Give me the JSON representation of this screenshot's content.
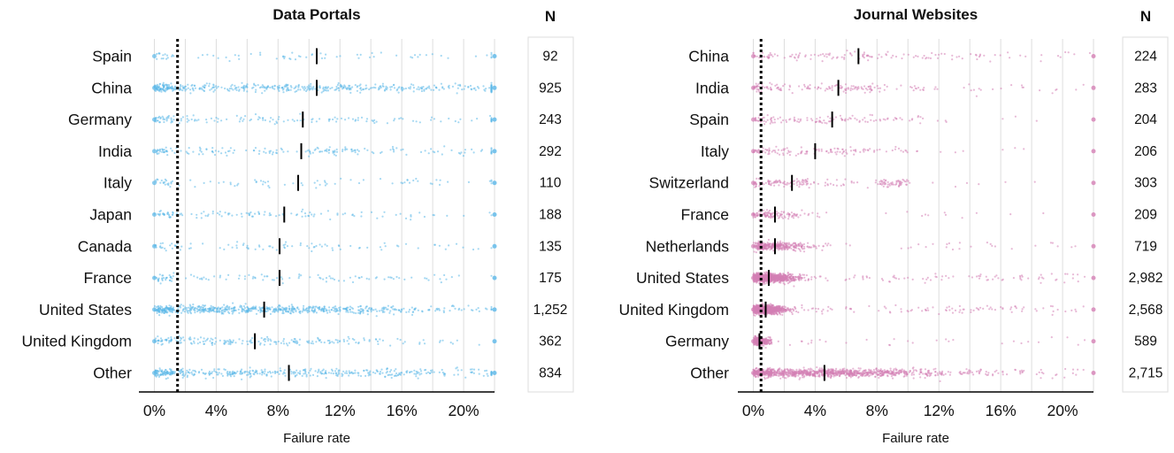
{
  "chart_data": [
    {
      "type": "scatter",
      "title": "Data Portals",
      "xlabel": "Failure rate",
      "ylabel": "",
      "xlim": [
        -0.01,
        0.22
      ],
      "xticks": [
        0,
        0.04,
        0.08,
        0.12,
        0.16,
        0.2
      ],
      "xtick_labels": [
        "0%",
        "4%",
        "8%",
        "12%",
        "16%",
        "20%"
      ],
      "reference_line": 0.015,
      "color": "#5bb8e8",
      "n_header": "N",
      "categories": [
        "Spain",
        "China",
        "Germany",
        "India",
        "Italy",
        "Japan",
        "Canada",
        "France",
        "United States",
        "United Kingdom",
        "Other"
      ],
      "medians": [
        0.105,
        0.105,
        0.096,
        0.095,
        0.093,
        0.084,
        0.081,
        0.081,
        0.071,
        0.065,
        0.087
      ],
      "counts": [
        "92",
        "925",
        "243",
        "292",
        "110",
        "188",
        "135",
        "175",
        "1,252",
        "362",
        "834"
      ]
    },
    {
      "type": "scatter",
      "title": "Journal Websites",
      "xlabel": "Failure rate",
      "ylabel": "",
      "xlim": [
        -0.01,
        0.22
      ],
      "xticks": [
        0,
        0.04,
        0.08,
        0.12,
        0.16,
        0.2
      ],
      "xtick_labels": [
        "0%",
        "4%",
        "8%",
        "12%",
        "16%",
        "20%"
      ],
      "reference_line": 0.005,
      "color": "#d47fb5",
      "n_header": "N",
      "categories": [
        "China",
        "India",
        "Spain",
        "Italy",
        "Switzerland",
        "France",
        "Netherlands",
        "United States",
        "United Kingdom",
        "Germany",
        "Other"
      ],
      "medians": [
        0.068,
        0.055,
        0.051,
        0.04,
        0.025,
        0.014,
        0.014,
        0.01,
        0.008,
        0.004,
        0.046
      ],
      "counts": [
        "224",
        "283",
        "204",
        "206",
        "303",
        "209",
        "719",
        "2,982",
        "2,568",
        "589",
        "2,715"
      ]
    }
  ]
}
